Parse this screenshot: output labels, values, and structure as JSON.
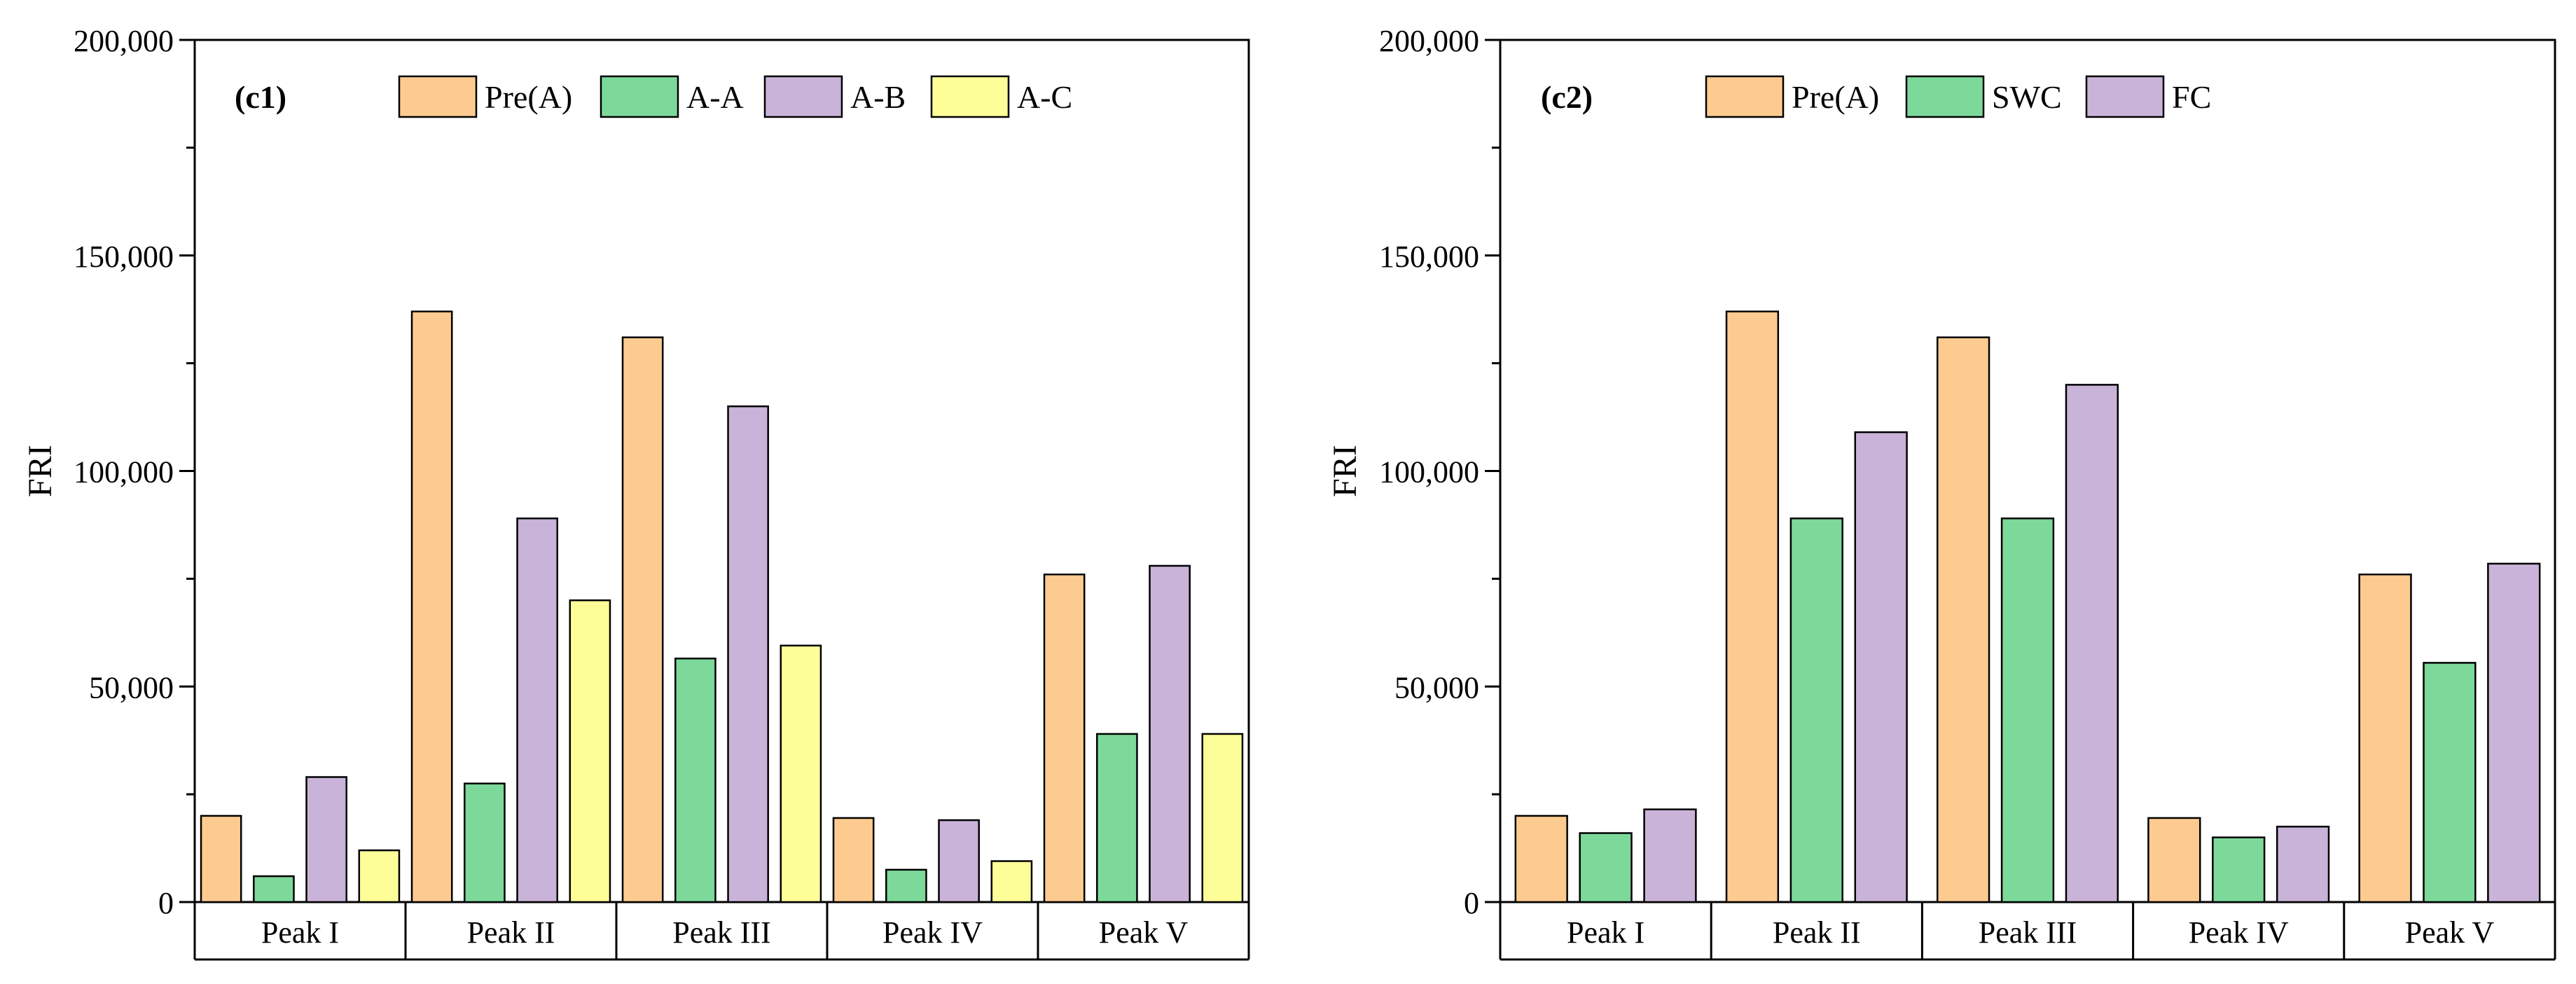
{
  "colors": {
    "pre_a": "#fdcb8f",
    "green": "#7cd99a",
    "purple": "#c9b3d8",
    "yellow": "#fefe99",
    "stroke": "#000000"
  },
  "chart_data": [
    {
      "id": "c1",
      "type": "bar",
      "panel_label": "(c1)",
      "ylabel": "FRI",
      "ylim": [
        0,
        200000
      ],
      "yticks": [
        0,
        50000,
        100000,
        150000,
        200000
      ],
      "ytick_labels": [
        "0",
        "50,000",
        "100,000",
        "150,000",
        "200,000"
      ],
      "legend_position": "top",
      "categories": [
        "Peak I",
        "Peak II",
        "Peak III",
        "Peak IV",
        "Peak V"
      ],
      "series": [
        {
          "name": "Pre(A)",
          "color": "#fdcb8f",
          "values": [
            20000,
            137000,
            131000,
            19500,
            76000
          ]
        },
        {
          "name": "A-A",
          "color": "#7cd99a",
          "values": [
            6000,
            27500,
            56500,
            7500,
            39000
          ]
        },
        {
          "name": "A-B",
          "color": "#c9b3d8",
          "values": [
            29000,
            89000,
            115000,
            19000,
            78000
          ]
        },
        {
          "name": "A-C",
          "color": "#fefe99",
          "values": [
            12000,
            70000,
            59500,
            9500,
            39000
          ]
        }
      ]
    },
    {
      "id": "c2",
      "type": "bar",
      "panel_label": "(c2)",
      "ylabel": "FRI",
      "ylim": [
        0,
        200000
      ],
      "yticks": [
        0,
        50000,
        100000,
        150000,
        200000
      ],
      "ytick_labels": [
        "0",
        "50,000",
        "100,000",
        "150,000",
        "200,000"
      ],
      "legend_position": "top",
      "categories": [
        "Peak I",
        "Peak II",
        "Peak III",
        "Peak IV",
        "Peak V"
      ],
      "series": [
        {
          "name": "Pre(A)",
          "color": "#fdcb8f",
          "values": [
            20000,
            137000,
            131000,
            19500,
            76000
          ]
        },
        {
          "name": "SWC",
          "color": "#7cd99a",
          "values": [
            16000,
            89000,
            89000,
            15000,
            55500
          ]
        },
        {
          "name": "FC",
          "color": "#c9b3d8",
          "values": [
            21500,
            109000,
            120000,
            17500,
            78500
          ]
        }
      ]
    }
  ]
}
